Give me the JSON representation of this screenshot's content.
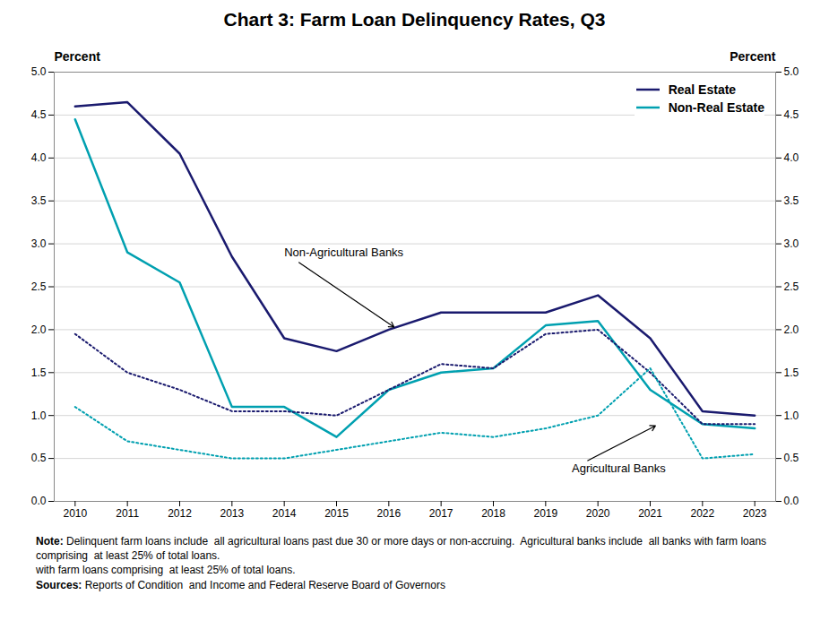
{
  "chart_data": {
    "type": "line",
    "title": "Chart 3: Farm Loan Delinquency Rates, Q3",
    "x": [
      2010,
      2011,
      2012,
      2013,
      2014,
      2015,
      2016,
      2017,
      2018,
      2019,
      2020,
      2021,
      2022,
      2023
    ],
    "xlim": [
      2009.6,
      2023.4
    ],
    "xticks": [
      2010,
      2011,
      2012,
      2013,
      2014,
      2015,
      2016,
      2017,
      2018,
      2019,
      2020,
      2021,
      2022,
      2023
    ],
    "ylim": [
      0.0,
      5.0
    ],
    "yticks": [
      {
        "value": 0,
        "label": "0.0"
      },
      0.5,
      {
        "value": 1,
        "label": "1.0"
      },
      1.5,
      {
        "value": 2,
        "label": "2.0"
      },
      2.5,
      {
        "value": 3,
        "label": "3.0"
      },
      3.5,
      {
        "value": 4,
        "label": "4.0"
      },
      4.5,
      {
        "value": 5,
        "label": "5.0"
      }
    ],
    "y2lim": [
      0.0,
      5.0
    ],
    "y2ticks": [
      {
        "value": 0,
        "label": "0.0"
      },
      0.5,
      {
        "value": 1,
        "label": "1.0"
      },
      1.5,
      {
        "value": 2,
        "label": "2.0"
      },
      2.5,
      {
        "value": 3,
        "label": "3.0"
      },
      3.5,
      {
        "value": 4,
        "label": "4.0"
      },
      4.5,
      {
        "value": 5,
        "label": "5.0"
      }
    ],
    "ylabel": "Percent",
    "y2label": "Percent",
    "grid": true,
    "legend": "upper right",
    "series": [
      {
        "name": "Real Estate",
        "color": "#1a1a6e",
        "line_style": "solid",
        "values": [
          4.6,
          4.65,
          4.05,
          2.85,
          1.9,
          1.75,
          2.0,
          2.2,
          2.2,
          2.2,
          2.4,
          1.9,
          1.05,
          1.0
        ]
      },
      {
        "name": "Non-Real Estate",
        "color": "#00a0b0",
        "line_style": "solid",
        "values": [
          4.45,
          2.9,
          2.55,
          1.1,
          1.1,
          0.75,
          1.3,
          1.5,
          1.55,
          2.05,
          2.1,
          1.3,
          0.9,
          0.85
        ]
      },
      {
        "name": "Real Estate",
        "color": "#1a1a6e",
        "line_style": "dotted",
        "values": [
          1.95,
          1.5,
          1.3,
          1.05,
          1.05,
          1.0,
          1.3,
          1.6,
          1.55,
          1.95,
          2.0,
          1.5,
          0.9,
          0.9
        ]
      },
      {
        "name": "Non-Real Estate",
        "color": "#00a0b0",
        "line_style": "dotted",
        "values": [
          1.1,
          0.7,
          0.6,
          0.5,
          0.5,
          0.6,
          0.7,
          0.8,
          0.75,
          0.85,
          1.0,
          1.55,
          0.5,
          0.55
        ]
      }
    ],
    "annotations": [
      {
        "text": "Non-Agricultural Banks",
        "x": 2016.1,
        "y": 2.03,
        "text_x": 2014.0,
        "text_y": 2.9
      },
      {
        "text": "Agricultural Banks",
        "x": 2021.1,
        "y": 0.88,
        "text_x": 2019.5,
        "text_y": 0.38
      }
    ],
    "note_label": "Note:",
    "note": " Delinquent farm loans include  all agricultural loans past due 30 or more days or non-accruing.  Agricultural banks include  all banks with farm loans comprising  at least 25% of total loans.",
    "note_continued": "with farm loans comprising  at least 25% of total loans.",
    "sources_label": "Sources:",
    "sources": " Reports of Condition  and Income and Federal Reserve Board of Governors"
  }
}
